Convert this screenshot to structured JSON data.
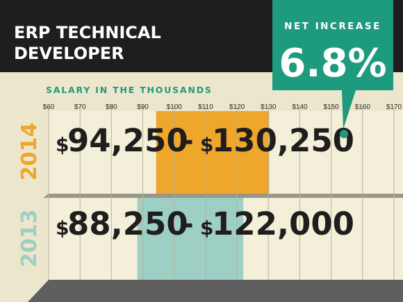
{
  "title_lines": [
    "ERP TECHNICAL",
    "DEVELOPER"
  ],
  "subtitle": "SALARY IN THE THOUSANDS",
  "callout": {
    "label": "NET INCREASE",
    "value": "6.8%"
  },
  "colors": {
    "dark": "#1f1d1d",
    "accent_green": "#1e9a7e",
    "band_2014": "#eea62b",
    "band_2013": "#9dcfc4",
    "row_bg": "#f4efd8",
    "grid": "#b8b29c",
    "shadow": "#5f5f5f"
  },
  "chart_data": {
    "type": "range-bar",
    "title": "ERP TECHNICAL DEVELOPER",
    "subtitle": "SALARY IN THE THOUSANDS",
    "x_ticks": [
      "$60",
      "$70",
      "$80",
      "$90",
      "$100",
      "$110",
      "$120",
      "$130",
      "$140",
      "$150",
      "$160",
      "$170"
    ],
    "x_range": [
      60,
      170
    ],
    "series": [
      {
        "year": "2014",
        "low": 94.25,
        "high": 130.25,
        "low_label": "94,250",
        "high_label": "130,250"
      },
      {
        "year": "2013",
        "low": 88.25,
        "high": 122.0,
        "low_label": "88,250",
        "high_label": "122,000"
      }
    ],
    "net_increase": "6.8%"
  }
}
